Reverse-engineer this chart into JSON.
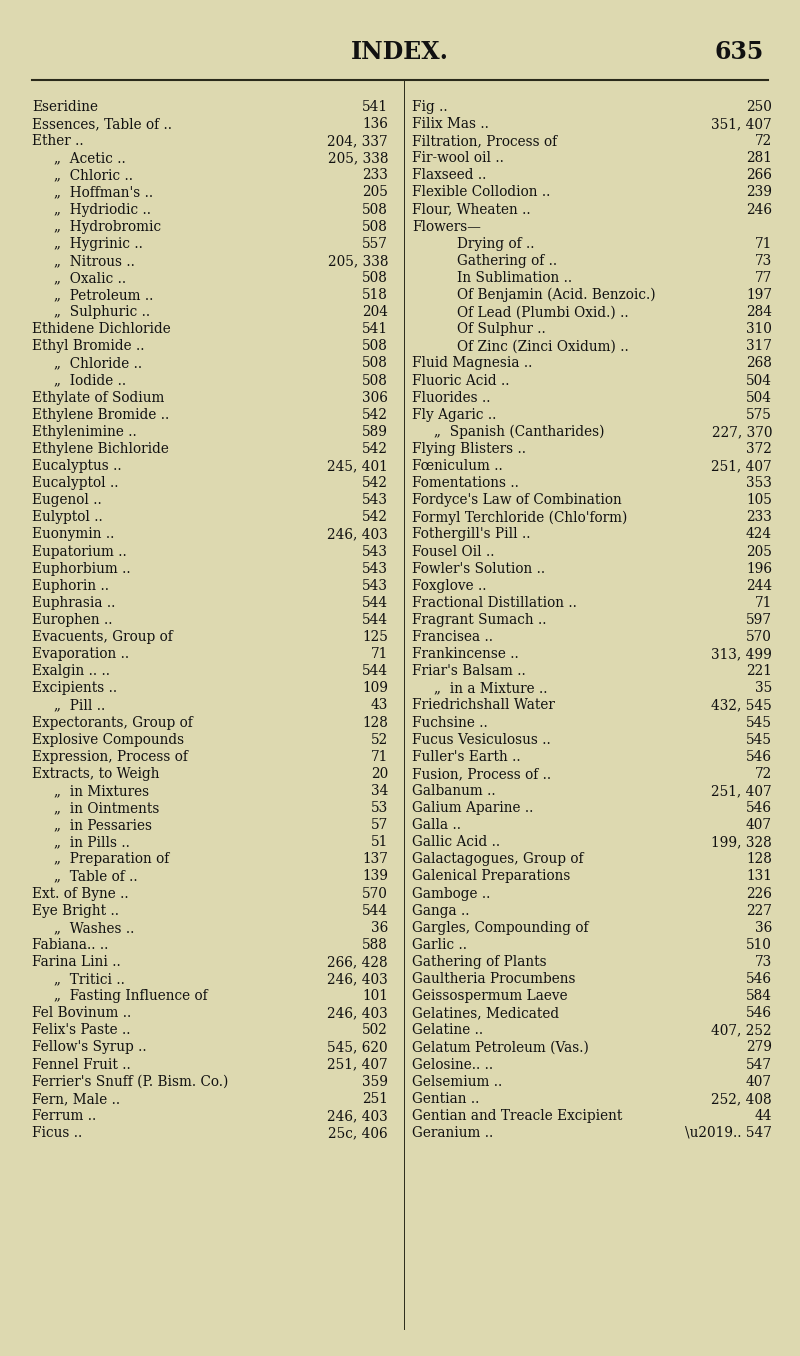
{
  "bg_color": "#ddd9b0",
  "title": "INDEX.",
  "page_num": "635",
  "figsize": [
    8.0,
    13.56
  ],
  "dpi": 100,
  "left_entries": [
    {
      "term": "Eseridine",
      "dots": true,
      "num": "541",
      "indent": 0
    },
    {
      "term": "Essences, Table of ..",
      "dots": true,
      "num": "136",
      "indent": 0
    },
    {
      "term": "Ether ..",
      "dots": false,
      "num": "204, 337",
      "indent": 0
    },
    {
      "term": "„  Acetic ..",
      "dots": false,
      "num": "205, 338",
      "indent": 1
    },
    {
      "term": "„  Chloric ..",
      "dots": true,
      "num": "233",
      "indent": 1
    },
    {
      "term": "„  Hoffman's ..",
      "dots": true,
      "num": "205",
      "indent": 1
    },
    {
      "term": "„  Hydriodic ..",
      "dots": true,
      "num": "508",
      "indent": 1
    },
    {
      "term": "„  Hydrobromic",
      "dots": true,
      "num": "508",
      "indent": 1
    },
    {
      "term": "„  Hygrinic ..",
      "dots": true,
      "num": "557",
      "indent": 1
    },
    {
      "term": "„  Nitrous ..",
      "dots": false,
      "num": "205, 338",
      "indent": 1
    },
    {
      "term": "„  Oxalic ..",
      "dots": true,
      "num": "508",
      "indent": 1
    },
    {
      "term": "„  Petroleum ..",
      "dots": true,
      "num": "518",
      "indent": 1
    },
    {
      "term": "„  Sulphuric ..",
      "dots": true,
      "num": "204",
      "indent": 1
    },
    {
      "term": "Ethidene Dichloride",
      "dots": true,
      "num": "541",
      "indent": 0
    },
    {
      "term": "Ethyl Bromide ..",
      "dots": true,
      "num": "508",
      "indent": 0
    },
    {
      "term": "„  Chloride ..",
      "dots": true,
      "num": "508",
      "indent": 1
    },
    {
      "term": "„  Iodide ..",
      "dots": true,
      "num": "508",
      "indent": 1
    },
    {
      "term": "Ethylate of Sodium",
      "dots": true,
      "num": "306",
      "indent": 0
    },
    {
      "term": "Ethylene Bromide ..",
      "dots": true,
      "num": "542",
      "indent": 0
    },
    {
      "term": "Ethylenimine ..",
      "dots": true,
      "num": "589",
      "indent": 0
    },
    {
      "term": "Ethylene Bichloride",
      "dots": true,
      "num": "542",
      "indent": 0
    },
    {
      "term": "Eucalyptus ..",
      "dots": false,
      "num": "245, 401",
      "indent": 0
    },
    {
      "term": "Eucalyptol ..",
      "dots": true,
      "num": "542",
      "indent": 0
    },
    {
      "term": "Eugenol ..",
      "dots": true,
      "num": "543",
      "indent": 0
    },
    {
      "term": "Eulyptol ..",
      "dots": true,
      "num": "542",
      "indent": 0
    },
    {
      "term": "Euonymin ..",
      "dots": false,
      "num": "246, 403",
      "indent": 0
    },
    {
      "term": "Eupatorium ..",
      "dots": true,
      "num": "543",
      "indent": 0
    },
    {
      "term": "Euphorbium ..",
      "dots": true,
      "num": "543",
      "indent": 0
    },
    {
      "term": "Euphorin ..",
      "dots": true,
      "num": "543",
      "indent": 0
    },
    {
      "term": "Euphrasia ..",
      "dots": true,
      "num": "544",
      "indent": 0
    },
    {
      "term": "Europhen ..",
      "dots": true,
      "num": "544",
      "indent": 0
    },
    {
      "term": "Evacuents, Group of",
      "dots": true,
      "num": "125",
      "indent": 0
    },
    {
      "term": "Evaporation ..",
      "dots": true,
      "num": "71",
      "indent": 0
    },
    {
      "term": "Exalgin .. ..",
      "dots": true,
      "num": "544",
      "indent": 0
    },
    {
      "term": "Excipients ..",
      "dots": true,
      "num": "109",
      "indent": 0
    },
    {
      "term": "„  Pill ..",
      "dots": true,
      "num": "43",
      "indent": 1
    },
    {
      "term": "Expectorants, Group of",
      "dots": true,
      "num": "128",
      "indent": 0
    },
    {
      "term": "Explosive Compounds",
      "dots": true,
      "num": "52",
      "indent": 0
    },
    {
      "term": "Expression, Process of",
      "dots": true,
      "num": "71",
      "indent": 0
    },
    {
      "term": "Extracts, to Weigh",
      "dots": true,
      "num": "20",
      "indent": 0
    },
    {
      "term": "„  in Mixtures",
      "dots": true,
      "num": "34",
      "indent": 1
    },
    {
      "term": "„  in Ointments",
      "dots": true,
      "num": "53",
      "indent": 1
    },
    {
      "term": "„  in Pessaries",
      "dots": true,
      "num": "57",
      "indent": 1
    },
    {
      "term": "„  in Pills ..",
      "dots": true,
      "num": "51",
      "indent": 1
    },
    {
      "term": "„  Preparation of",
      "dots": true,
      "num": "137",
      "indent": 1
    },
    {
      "term": "„  Table of ..",
      "dots": true,
      "num": "139",
      "indent": 1
    },
    {
      "term": "Ext. of Byne ..",
      "dots": true,
      "num": "570",
      "indent": 0
    },
    {
      "term": "Eye Bright ..",
      "dots": true,
      "num": "544",
      "indent": 0
    },
    {
      "term": "„  Washes ..",
      "dots": true,
      "num": "36",
      "indent": 1
    },
    {
      "term": "Fabiana.. ..",
      "dots": true,
      "num": "588",
      "indent": 0
    },
    {
      "term": "Farina Lini ..",
      "dots": false,
      "num": "266, 428",
      "indent": 0
    },
    {
      "term": "„  Tritici ..",
      "dots": false,
      "num": "246, 403",
      "indent": 1
    },
    {
      "term": "„  Fasting Influence of",
      "dots": true,
      "num": "101",
      "indent": 1
    },
    {
      "term": "Fel Bovinum ..",
      "dots": false,
      "num": "246, 403",
      "indent": 0
    },
    {
      "term": "Felix's Paste ..",
      "dots": true,
      "num": "502",
      "indent": 0
    },
    {
      "term": "Fellow's Syrup ..",
      "dots": false,
      "num": "545, 620",
      "indent": 0
    },
    {
      "term": "Fennel Fruit ..",
      "dots": false,
      "num": "251, 407",
      "indent": 0
    },
    {
      "term": "Ferrier's Snuff (P. Bism. Co.)",
      "dots": true,
      "num": "359",
      "indent": 0
    },
    {
      "term": "Fern, Male ..",
      "dots": true,
      "num": "251",
      "indent": 0
    },
    {
      "term": "Ferrum ..",
      "dots": false,
      "num": "246, 403",
      "indent": 0
    },
    {
      "term": "Ficus ..",
      "dots": false,
      "num": "25c, 406",
      "indent": 0
    }
  ],
  "right_entries": [
    {
      "term": "Fig ..",
      "dots": true,
      "num": "250",
      "indent": 0
    },
    {
      "term": "Filix Mas ..",
      "dots": false,
      "num": "351, 407",
      "indent": 0
    },
    {
      "term": "Filtration, Process of",
      "dots": true,
      "num": "72",
      "indent": 0
    },
    {
      "term": "Fir-wool oil ..",
      "dots": true,
      "num": "281",
      "indent": 0
    },
    {
      "term": "Flaxseed ..",
      "dots": true,
      "num": "266",
      "indent": 0
    },
    {
      "term": "Flexible Collodion ..",
      "dots": true,
      "num": "239",
      "indent": 0
    },
    {
      "term": "Flour, Wheaten ..",
      "dots": true,
      "num": "246",
      "indent": 0
    },
    {
      "term": "Flowers—",
      "dots": false,
      "num": "",
      "indent": 0
    },
    {
      "term": "Drying of ..",
      "dots": true,
      "num": "71",
      "indent": 2
    },
    {
      "term": "Gathering of ..",
      "dots": true,
      "num": "73",
      "indent": 2
    },
    {
      "term": "In Sublimation ..",
      "dots": true,
      "num": "77",
      "indent": 2
    },
    {
      "term": "Of Benjamin (Acid. Benzoic.)",
      "dots": false,
      "num": "197",
      "indent": 2
    },
    {
      "term": "Of Lead (Plumbi Oxid.) ..",
      "dots": false,
      "num": "284",
      "indent": 2
    },
    {
      "term": "Of Sulphur ..",
      "dots": true,
      "num": "310",
      "indent": 2
    },
    {
      "term": "Of Zinc (Zinci Oxidum) ..",
      "dots": false,
      "num": "317",
      "indent": 2
    },
    {
      "term": "Fluid Magnesia ..",
      "dots": true,
      "num": "268",
      "indent": 0
    },
    {
      "term": "Fluoric Acid ..",
      "dots": true,
      "num": "504",
      "indent": 0
    },
    {
      "term": "Fluorides ..",
      "dots": true,
      "num": "504",
      "indent": 0
    },
    {
      "term": "Fly Agaric ..",
      "dots": true,
      "num": "575",
      "indent": 0
    },
    {
      "term": "„  Spanish (Cantharides)",
      "dots": false,
      "num": "227, 370",
      "indent": 1
    },
    {
      "term": "Flying Blisters ..",
      "dots": true,
      "num": "372",
      "indent": 0
    },
    {
      "term": "Fœniculum ..",
      "dots": false,
      "num": "251, 407",
      "indent": 0
    },
    {
      "term": "Fomentations ..",
      "dots": true,
      "num": "353",
      "indent": 0
    },
    {
      "term": "Fordyce's Law of Combination",
      "dots": false,
      "num": "105",
      "indent": 0
    },
    {
      "term": "Formyl Terchloride (Chlo'form)",
      "dots": false,
      "num": "233",
      "indent": 0
    },
    {
      "term": "Fothergill's Pill ..",
      "dots": true,
      "num": "424",
      "indent": 0
    },
    {
      "term": "Fousel Oil ..",
      "dots": true,
      "num": "205",
      "indent": 0
    },
    {
      "term": "Fowler's Solution ..",
      "dots": true,
      "num": "196",
      "indent": 0
    },
    {
      "term": "Foxglove ..",
      "dots": true,
      "num": "244",
      "indent": 0
    },
    {
      "term": "Fractional Distillation ..",
      "dots": false,
      "num": "71",
      "indent": 0
    },
    {
      "term": "Fragrant Sumach ..",
      "dots": true,
      "num": "597",
      "indent": 0
    },
    {
      "term": "Francisea ..",
      "dots": true,
      "num": "570",
      "indent": 0
    },
    {
      "term": "Frankincense ..",
      "dots": false,
      "num": "313, 499",
      "indent": 0
    },
    {
      "term": "Friar's Balsam ..",
      "dots": true,
      "num": "221",
      "indent": 0
    },
    {
      "term": "„  in a Mixture ..",
      "dots": false,
      "num": "35",
      "indent": 1
    },
    {
      "term": "Friedrichshall Water",
      "dots": false,
      "num": "432, 545",
      "indent": 0
    },
    {
      "term": "Fuchsine ..",
      "dots": true,
      "num": "545",
      "indent": 0
    },
    {
      "term": "Fucus Vesiculosus ..",
      "dots": true,
      "num": "545",
      "indent": 0
    },
    {
      "term": "Fuller's Earth ..",
      "dots": true,
      "num": "546",
      "indent": 0
    },
    {
      "term": "Fusion, Process of ..",
      "dots": true,
      "num": "72",
      "indent": 0
    },
    {
      "term": "Galbanum ..",
      "dots": false,
      "num": "251, 407",
      "indent": 0
    },
    {
      "term": "Galium Aparine ..",
      "dots": true,
      "num": "546",
      "indent": 0
    },
    {
      "term": "Galla ..",
      "dots": true,
      "num": "407",
      "indent": 0
    },
    {
      "term": "Gallic Acid ..",
      "dots": false,
      "num": "199, 328",
      "indent": 0
    },
    {
      "term": "Galactagogues, Group of",
      "dots": true,
      "num": "128",
      "indent": 0
    },
    {
      "term": "Galenical Preparations",
      "dots": true,
      "num": "131",
      "indent": 0
    },
    {
      "term": "Gamboge ..",
      "dots": true,
      "num": "226",
      "indent": 0
    },
    {
      "term": "Ganga ..",
      "dots": true,
      "num": "227",
      "indent": 0
    },
    {
      "term": "Gargles, Compounding of",
      "dots": true,
      "num": "36",
      "indent": 0
    },
    {
      "term": "Garlic ..",
      "dots": true,
      "num": "510",
      "indent": 0
    },
    {
      "term": "Gathering of Plants",
      "dots": true,
      "num": "73",
      "indent": 0
    },
    {
      "term": "Gaultheria Procumbens",
      "dots": true,
      "num": "546",
      "indent": 0
    },
    {
      "term": "Geissospermum Laeve",
      "dots": true,
      "num": "584",
      "indent": 0
    },
    {
      "term": "Gelatines, Medicated",
      "dots": true,
      "num": "546",
      "indent": 0
    },
    {
      "term": "Gelatine ..",
      "dots": false,
      "num": "407, 252",
      "indent": 0
    },
    {
      "term": "Gelatum Petroleum (Vas.)",
      "dots": true,
      "num": "279",
      "indent": 0
    },
    {
      "term": "Gelosine.. ..",
      "dots": true,
      "num": "547",
      "indent": 0
    },
    {
      "term": "Gelsemium ..",
      "dots": true,
      "num": "407",
      "indent": 0
    },
    {
      "term": "Gentian ..",
      "dots": false,
      "num": "252, 408",
      "indent": 0
    },
    {
      "term": "Gentian and Treacle Excipient",
      "dots": false,
      "num": "44",
      "indent": 0
    },
    {
      "term": "Geranium ..",
      "dots": true,
      "num": "\\u2019.. 547",
      "indent": 0
    }
  ]
}
